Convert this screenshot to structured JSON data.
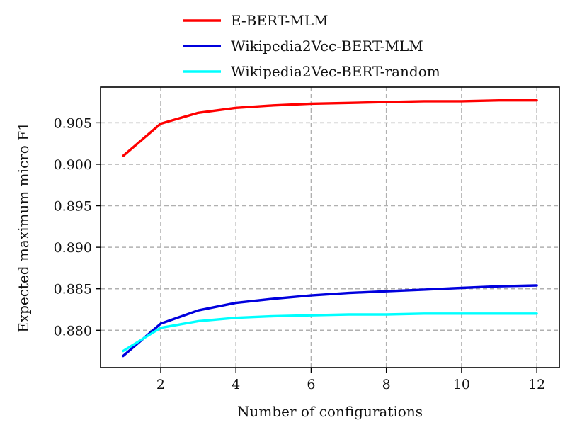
{
  "chart_data": {
    "type": "line",
    "title": "",
    "xlabel": "Number of configurations",
    "ylabel": "Expected maximum micro F1",
    "xlim": [
      0.4,
      12.6
    ],
    "ylim": [
      0.8755,
      0.9093
    ],
    "grid": true,
    "legend_position": "top",
    "xticks": [
      2,
      4,
      6,
      8,
      10,
      12
    ],
    "xtick_labels": [
      "2",
      "4",
      "6",
      "8",
      "10",
      "12"
    ],
    "yticks": [
      0.88,
      0.885,
      0.89,
      0.895,
      0.9,
      0.905
    ],
    "ytick_labels": [
      "0.880",
      "0.885",
      "0.890",
      "0.895",
      "0.900",
      "0.905"
    ],
    "x": [
      1,
      2,
      3,
      4,
      5,
      6,
      7,
      8,
      9,
      10,
      11,
      12
    ],
    "series": [
      {
        "name": "E-BERT-MLM",
        "color": "#ff0000",
        "values": [
          0.901,
          0.9049,
          0.9062,
          0.9068,
          0.9071,
          0.9073,
          0.9074,
          0.9075,
          0.9076,
          0.9076,
          0.9077,
          0.9077
        ]
      },
      {
        "name": "Wikipedia2Vec-BERT-MLM",
        "color": "#0000dd",
        "values": [
          0.8769,
          0.8808,
          0.8824,
          0.8833,
          0.8838,
          0.8842,
          0.8845,
          0.8847,
          0.8849,
          0.8851,
          0.8853,
          0.8854
        ]
      },
      {
        "name": "Wikipedia2Vec-BERT-random",
        "color": "#00ffff",
        "values": [
          0.8775,
          0.8803,
          0.8811,
          0.8815,
          0.8817,
          0.8818,
          0.8819,
          0.8819,
          0.882,
          0.882,
          0.882,
          0.882
        ]
      }
    ]
  }
}
